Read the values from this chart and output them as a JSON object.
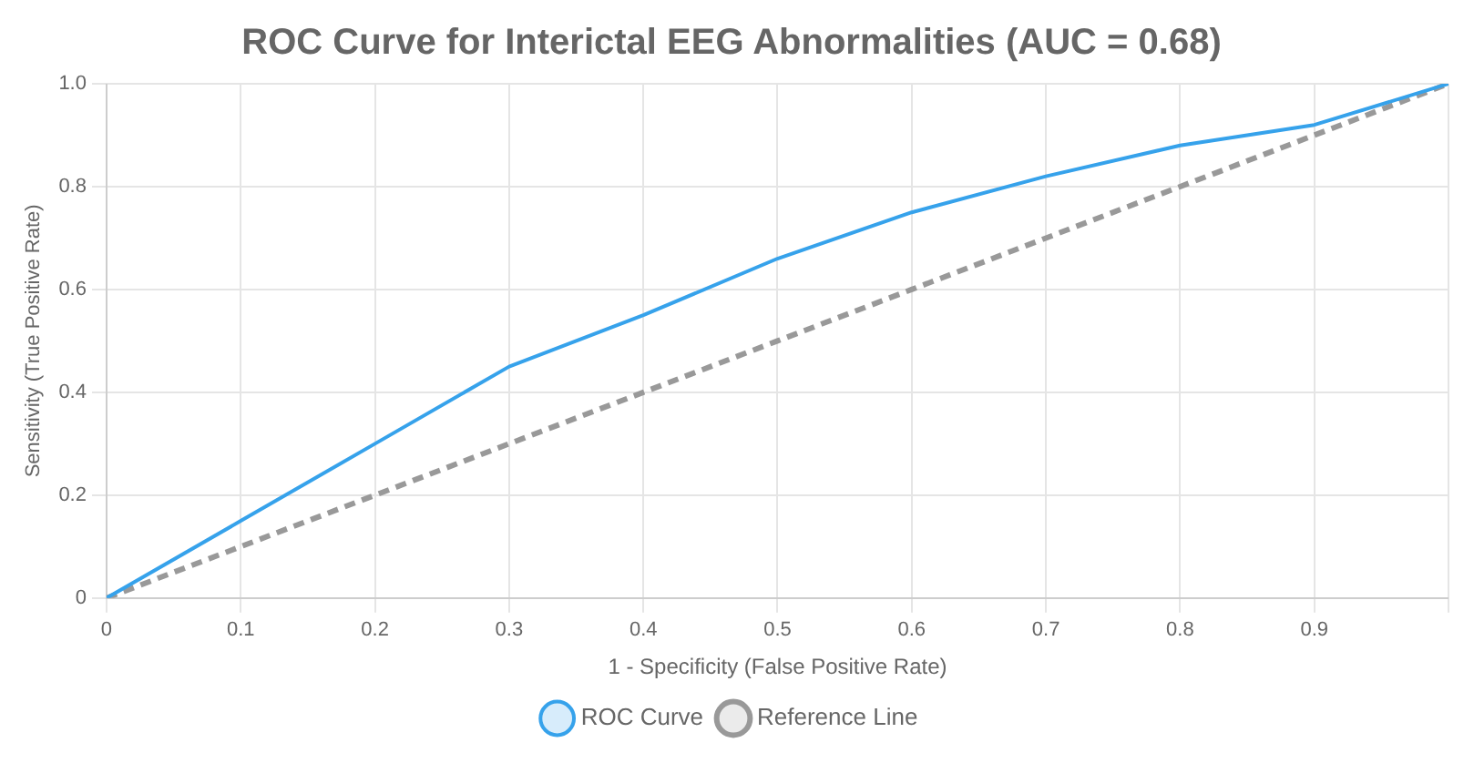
{
  "chart_data": {
    "type": "line",
    "title": "ROC Curve for Interictal EEG Abnormalities (AUC = 0.68)",
    "xlabel": "1 - Specificity (False Positive Rate)",
    "ylabel": "Sensitivity (True Positive Rate)",
    "x": [
      0,
      0.1,
      0.2,
      0.3,
      0.4,
      0.5,
      0.6,
      0.7,
      0.8,
      0.9,
      1
    ],
    "series": [
      {
        "name": "ROC Curve",
        "color": "#36a2eb",
        "values": [
          0,
          0.15,
          0.3,
          0.45,
          0.55,
          0.66,
          0.75,
          0.82,
          0.88,
          0.92,
          1
        ],
        "line_style": "solid"
      },
      {
        "name": "Reference Line",
        "color": "#999999",
        "values": [
          0,
          0.1,
          0.2,
          0.3,
          0.4,
          0.5,
          0.6,
          0.7,
          0.8,
          0.9,
          1
        ],
        "line_style": "dashed"
      }
    ],
    "xlim": [
      0,
      1
    ],
    "xticks": [
      0,
      0.1,
      0.2,
      0.3,
      0.4,
      0.5,
      0.6,
      0.7,
      0.8,
      0.9,
      {
        "value": 1,
        "label": null
      }
    ],
    "ylim": [
      0,
      1
    ],
    "yticks": [
      0,
      {
        "value": 0.2,
        "label": "0.2"
      },
      {
        "value": 0.4,
        "label": "0.4"
      },
      {
        "value": 0.6,
        "label": "0.6"
      },
      {
        "value": 0.8,
        "label": "0.8"
      },
      {
        "value": 1,
        "label": "1.0"
      }
    ],
    "grid": true,
    "legend": "bottom",
    "marker": "none"
  }
}
